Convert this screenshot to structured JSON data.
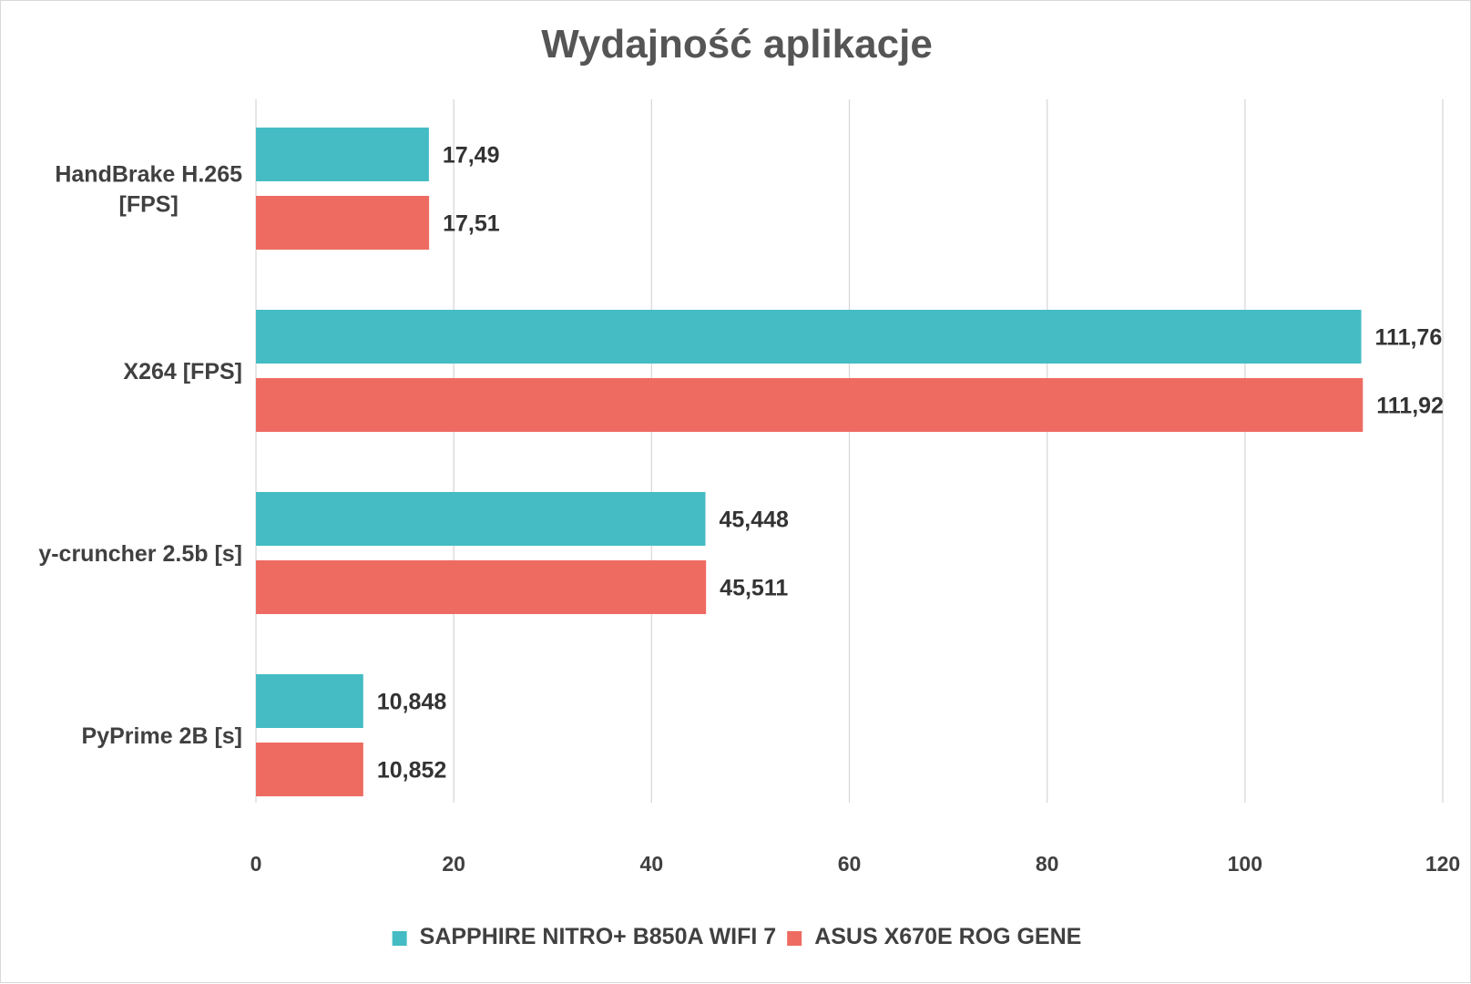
{
  "chart_data": {
    "type": "bar",
    "orientation": "horizontal",
    "title": "Wydajność aplikacje",
    "xlabel": "",
    "ylabel": "",
    "categories": [
      [
        "HandBrake H.265",
        "[FPS]"
      ],
      [
        "X264 [FPS]"
      ],
      [
        "y-cruncher 2.5b [s]"
      ],
      [
        "PyPrime 2B [s]"
      ]
    ],
    "series": [
      {
        "name": "SAPPHIRE NITRO+ B850A WIFI 7",
        "color": "#45bcc4",
        "values": [
          17.49,
          111.76,
          45.448,
          10.848
        ],
        "labels": [
          "17,49",
          "111,76",
          "45,448",
          "10,848"
        ]
      },
      {
        "name": "ASUS X670E ROG GENE",
        "color": "#ee6b62",
        "values": [
          17.51,
          111.92,
          45.511,
          10.852
        ],
        "labels": [
          "17,51",
          "111,92",
          "45,511",
          "10,852"
        ]
      }
    ],
    "xlim": [
      0,
      120
    ],
    "ticks": [
      0,
      20,
      40,
      60,
      80,
      100,
      120
    ],
    "grid": true,
    "legend_position": "bottom"
  }
}
